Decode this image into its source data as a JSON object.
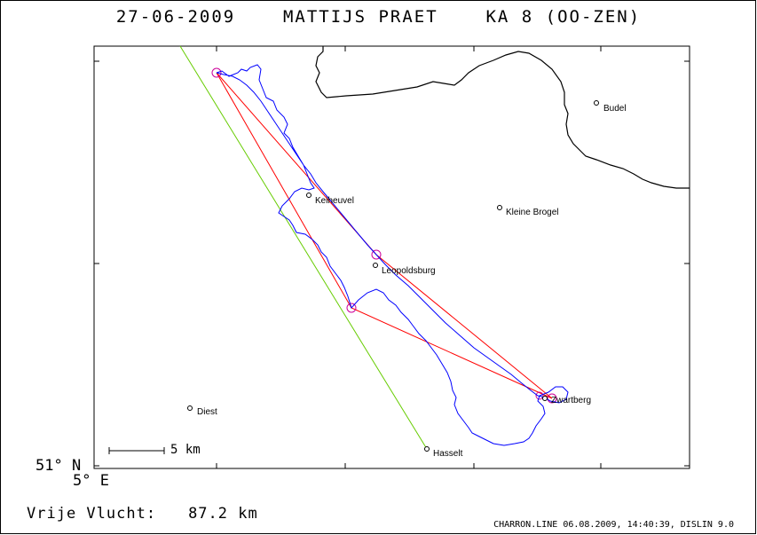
{
  "header": {
    "date": "27-06-2009",
    "pilot": "MATTIJS PRAET",
    "glider": "KA 8 (OO-ZEN)"
  },
  "map": {
    "lat_label": "51° N",
    "lon_label": "5° E",
    "scale_label": "5 km",
    "cities": [
      {
        "name": "Budel"
      },
      {
        "name": "Kleine Brogel"
      },
      {
        "name": "Keiheuvel"
      },
      {
        "name": "Leopoldsburg"
      },
      {
        "name": "Zwartberg"
      },
      {
        "name": "Diest"
      },
      {
        "name": "Hasselt"
      }
    ],
    "colors": {
      "track": "#0000ff",
      "task": "#ff0000",
      "turnpoint_circle": "#cc0099",
      "boundary": "#000000",
      "airspace": "#66cc00"
    }
  },
  "summary": {
    "label": "Vrije Vlucht:",
    "distance": "87.2 km"
  },
  "footer": {
    "text": "CHARRON.LINE 06.08.2009, 14:40:39, DISLIN 9.0"
  }
}
